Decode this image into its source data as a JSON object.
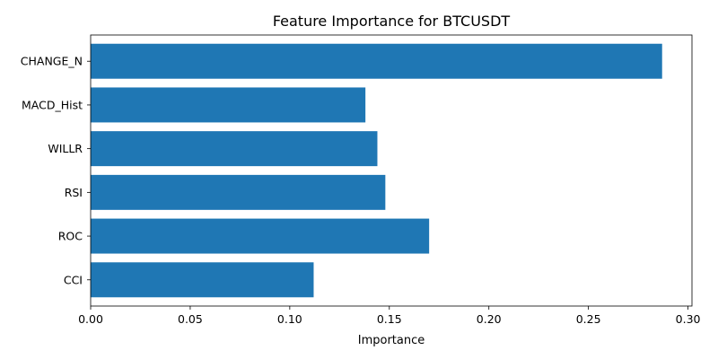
{
  "chart_data": {
    "type": "bar",
    "orientation": "horizontal",
    "title": "Feature Importance for BTCUSDT",
    "xlabel": "Importance",
    "ylabel": "",
    "categories": [
      "CHANGE_N",
      "MACD_Hist",
      "WILLR",
      "RSI",
      "ROC",
      "CCI"
    ],
    "values": [
      0.287,
      0.138,
      0.144,
      0.148,
      0.17,
      0.112
    ],
    "xlim": [
      0,
      0.302
    ],
    "xticks": [
      "0.00",
      "0.05",
      "0.10",
      "0.15",
      "0.20",
      "0.25",
      "0.30"
    ],
    "grid": false,
    "legend": "none",
    "bar_color": "#1f77b4"
  }
}
